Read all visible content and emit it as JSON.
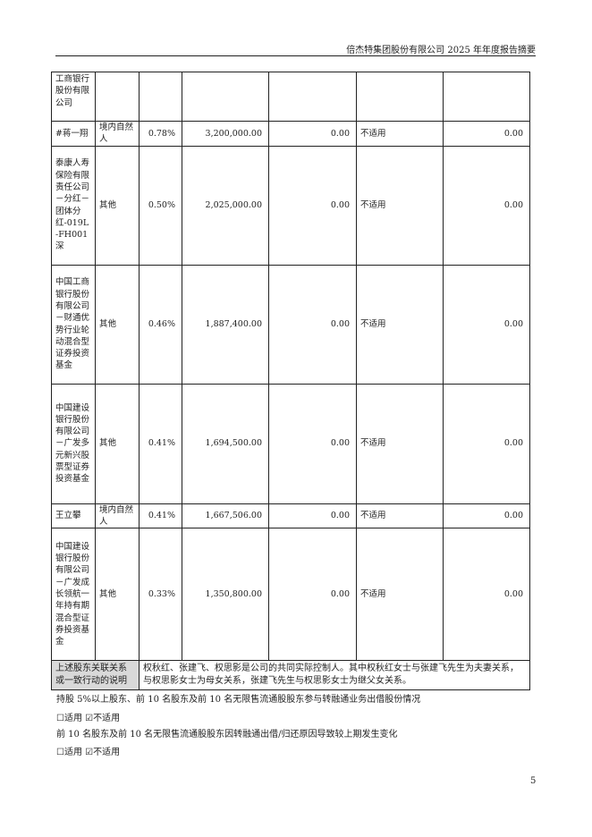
{
  "header": {
    "title": "倍杰特集团股份有限公司 2025 年年度报告摘要"
  },
  "table": {
    "rows": [
      {
        "name": "工商银行股份有限公司",
        "type": "",
        "ratio": "",
        "shares": "",
        "restricted": "",
        "pledge": "",
        "amount": ""
      },
      {
        "name": "#蒋一翔",
        "type": "境内自然人",
        "ratio": "0.78%",
        "shares": "3,200,000.00",
        "restricted": "0.00",
        "pledge": "不适用",
        "amount": "0.00"
      },
      {
        "name": "泰康人寿保险有限责任公司－分红－团体分红-019L-FH001深",
        "type": "其他",
        "ratio": "0.50%",
        "shares": "2,025,000.00",
        "restricted": "0.00",
        "pledge": "不适用",
        "amount": "0.00"
      },
      {
        "name": "中国工商银行股份有限公司－财通优势行业轮动混合型证券投资基金",
        "type": "其他",
        "ratio": "0.46%",
        "shares": "1,887,400.00",
        "restricted": "0.00",
        "pledge": "不适用",
        "amount": "0.00"
      },
      {
        "name": "中国建设银行股份有限公司－广发多元新兴股票型证券投资基金",
        "type": "其他",
        "ratio": "0.41%",
        "shares": "1,694,500.00",
        "restricted": "0.00",
        "pledge": "不适用",
        "amount": "0.00"
      },
      {
        "name": "王立攀",
        "type": "境内自然人",
        "ratio": "0.41%",
        "shares": "1,667,506.00",
        "restricted": "0.00",
        "pledge": "不适用",
        "amount": "0.00"
      },
      {
        "name": "中国建设银行股份有限公司－广发成长领航一年持有期混合型证券投资基金",
        "type": "其他",
        "ratio": "0.33%",
        "shares": "1,350,800.00",
        "restricted": "0.00",
        "pledge": "不适用",
        "amount": "0.00"
      }
    ],
    "relation_label": "上述股东关联关系或一致行动的说明",
    "relation_text": "权秋红、张建飞、权思影是公司的共同实际控制人。其中权秋红女士与张建飞先生为夫妻关系，与权思影女士为母女关系，张建飞先生与权思影女士为继父女关系。"
  },
  "section1": {
    "text": "持股 5%以上股东、前 10 名股东及前 10 名无限售流通股股东参与转融通业务出借股份情况",
    "options": "☐适用 ☑不适用"
  },
  "section2": {
    "text": "前 10 名股东及前 10 名无限售流通股股东因转融通出借/归还原因导致较上期发生变化",
    "options": "☐适用 ☑不适用"
  },
  "page_number": "5"
}
